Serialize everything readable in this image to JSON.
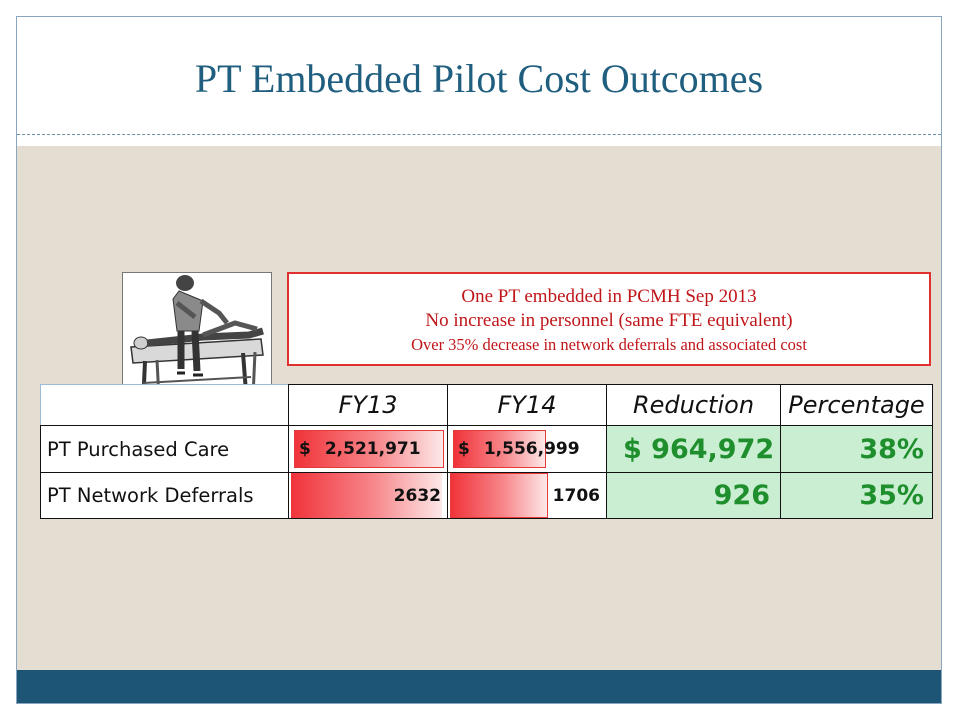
{
  "slide": {
    "title": "PT Embedded Pilot Cost Outcomes"
  },
  "colors": {
    "title": "#1f5e7e",
    "footer": "#1d5577",
    "content_bg": "#e3ddd2",
    "callout_text": "#c0161a",
    "positive_green": "#1e8f2c",
    "green_cell": "#c9eed2",
    "bar_red": "#f0333a"
  },
  "illustration": {
    "icon": "physical-therapist-treating-patient-sketch"
  },
  "callout": {
    "line1": "One PT embedded in PCMH Sep 2013",
    "line2": "No increase in personnel (same FTE equivalent)",
    "line3": "Over 35% decrease in network deferrals and associated cost"
  },
  "table": {
    "headers": [
      "FY13",
      "FY14",
      "Reduction",
      "Percentage"
    ],
    "rows": [
      {
        "label": "PT Purchased Care",
        "fy13_symbol": "$",
        "fy13": "2,521,971",
        "fy14_symbol": "$",
        "fy14": "1,556,999",
        "reduction": "$ 964,972",
        "percentage": "38%",
        "fy13_bar_fraction": 1.0,
        "fy14_bar_fraction": 0.617
      },
      {
        "label": "PT Network Deferrals",
        "fy13": "2632",
        "fy14": "1706",
        "reduction": "926",
        "percentage": "35%",
        "fy13_bar_fraction": 1.0,
        "fy14_bar_fraction": 0.648
      }
    ]
  }
}
